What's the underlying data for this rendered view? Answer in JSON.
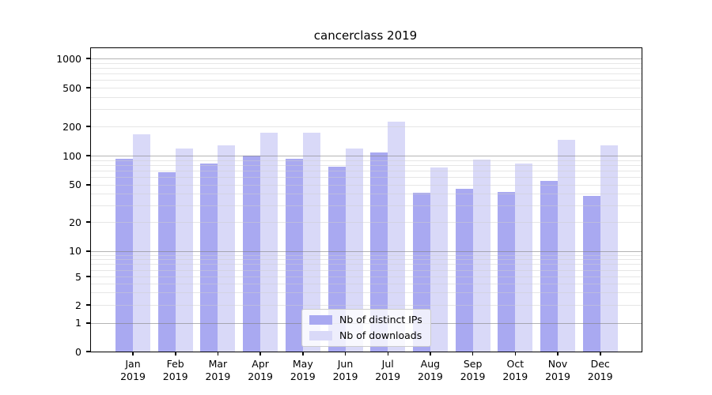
{
  "chart_data": {
    "type": "bar",
    "title": "cancerclass 2019",
    "categories": [
      "Jan",
      "Feb",
      "Mar",
      "Apr",
      "May",
      "Jun",
      "Jul",
      "Aug",
      "Sep",
      "Oct",
      "Nov",
      "Dec"
    ],
    "category_second_line": "2019",
    "series": [
      {
        "name": "Nb of distinct IPs",
        "color": "#a9a9f1",
        "values": [
          93,
          68,
          83,
          100,
          93,
          77,
          108,
          41,
          45,
          42,
          55,
          38
        ]
      },
      {
        "name": "Nb of downloads",
        "color": "#d9d9f8",
        "values": [
          165,
          118,
          128,
          174,
          172,
          118,
          222,
          75,
          91,
          83,
          145,
          127
        ]
      }
    ],
    "xlabel": "",
    "ylabel": "",
    "yticks": [
      0,
      1,
      2,
      5,
      10,
      20,
      50,
      100,
      200,
      500,
      1000
    ],
    "ylim": [
      0,
      1240
    ],
    "grid": true,
    "legend_position": "lower center",
    "yscale": {
      "type": "log-like with zero",
      "anchors": [
        [
          0,
          0.0
        ],
        [
          1,
          0.0951
        ],
        [
          2,
          0.1536
        ],
        [
          5,
          0.2474
        ],
        [
          10,
          0.332
        ],
        [
          20,
          0.4271
        ],
        [
          50,
          0.5503
        ],
        [
          100,
          0.645
        ],
        [
          200,
          0.7422
        ],
        [
          500,
          0.8698
        ],
        [
          1000,
          0.9654
        ]
      ]
    }
  },
  "colors": {
    "background": "#ffffff",
    "spine": "#000000",
    "major_grid": "#b2b2b2",
    "minor_grid": "#e6e6e6",
    "legend_border": "#cccccc"
  }
}
